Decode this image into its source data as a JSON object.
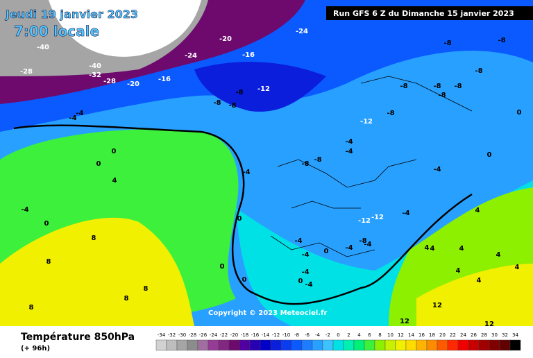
{
  "header": {
    "date": "Jeudi 19 janvier 2023",
    "time": "7:00 locale",
    "run": "Run GFS 6 Z du Dimanche 15 janvier 2023",
    "copyright": "Copyright © 2023 Meteociel.fr"
  },
  "footer": {
    "title": "Température 850hPa",
    "lead": "(+ 96h)"
  },
  "contour_labels": [
    -32,
    -40,
    -24,
    -28,
    -40,
    -32,
    -28,
    -20,
    -16,
    -20,
    -16,
    -24,
    -12,
    -8,
    -8,
    -8,
    -4,
    -4,
    -8,
    -8,
    -8,
    -8,
    -8,
    -8,
    -8,
    -8,
    0,
    -12,
    -4,
    -4,
    -8,
    -8,
    -4,
    0,
    -4,
    0,
    4,
    0,
    -4,
    0,
    0,
    -12,
    -12,
    -4,
    -8,
    -4,
    0,
    -4,
    -4,
    -4,
    -4,
    -4,
    0,
    0,
    0,
    8,
    8,
    8,
    8,
    8,
    4,
    4,
    4,
    4,
    4,
    4,
    4,
    12,
    12,
    12,
    4
  ],
  "scale": {
    "values": [
      -34,
      -32,
      -30,
      -28,
      -26,
      -24,
      -22,
      -20,
      -18,
      -16,
      -14,
      -12,
      -10,
      -8,
      -6,
      -4,
      -2,
      0,
      2,
      4,
      6,
      8,
      10,
      12,
      14,
      16,
      18,
      20,
      22,
      24,
      26,
      28,
      30,
      32,
      34
    ],
    "colors": [
      "#d2d2d2",
      "#bebebe",
      "#a5a5a5",
      "#8c8c8c",
      "#a06ea0",
      "#963c96",
      "#822882",
      "#6e0a6e",
      "#5000a0",
      "#2800b4",
      "#0000c8",
      "#0a1edc",
      "#0a3cf0",
      "#0a5aff",
      "#1e7dff",
      "#28a0ff",
      "#3cc3ff",
      "#00e1e6",
      "#00f0b4",
      "#00f078",
      "#3cf03c",
      "#8cf000",
      "#c8f000",
      "#f0f000",
      "#ffdc00",
      "#ffb400",
      "#ff8c00",
      "#ff5a00",
      "#ff2800",
      "#f00000",
      "#c80000",
      "#a00000",
      "#800000",
      "#600000",
      "#000000"
    ]
  }
}
